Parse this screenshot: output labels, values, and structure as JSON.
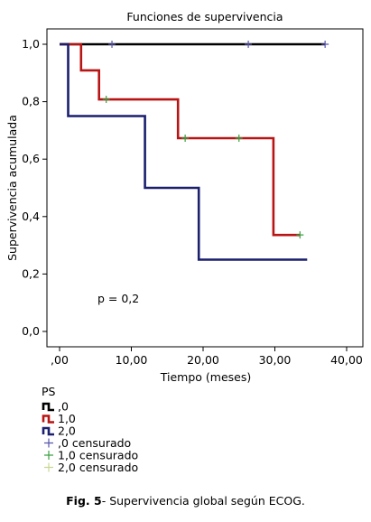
{
  "chart_data": {
    "type": "line",
    "subtype": "kaplan-meier step",
    "title": "Funciones de supervivencia",
    "xlabel": "Tiempo (meses)",
    "ylabel": "Supervivencia acumulada",
    "xlim": [
      0,
      40
    ],
    "ylim": [
      0,
      1
    ],
    "x_ticks": [
      ",00",
      "10,00",
      "20,00",
      "30,00",
      "40,00"
    ],
    "y_ticks": [
      "0,0",
      "0,2",
      "0,4",
      "0,6",
      "0,8",
      "1,0"
    ],
    "grid": false,
    "annotation": "p = 0,2",
    "legend_title": "PS",
    "legend_position": "bottom-left",
    "series": [
      {
        "name": ",0",
        "color": "#000000",
        "steps": [
          [
            0,
            1.0
          ],
          [
            37,
            1.0
          ]
        ],
        "censored": [
          [
            7.3,
            1.0
          ],
          [
            26.3,
            1.0
          ],
          [
            37,
            1.0
          ]
        ]
      },
      {
        "name": "1,0",
        "color": "#b81414",
        "steps": [
          [
            0,
            1.0
          ],
          [
            3,
            1.0
          ],
          [
            3,
            0.909
          ],
          [
            5.5,
            0.909
          ],
          [
            5.5,
            0.808
          ],
          [
            16.5,
            0.808
          ],
          [
            16.5,
            0.673
          ],
          [
            29.8,
            0.673
          ],
          [
            29.8,
            0.336
          ],
          [
            33.5,
            0.336
          ]
        ],
        "censored": [
          [
            6.5,
            0.808
          ],
          [
            17.5,
            0.673
          ],
          [
            25,
            0.673
          ],
          [
            33.5,
            0.336
          ]
        ]
      },
      {
        "name": "2,0",
        "color": "#1a1f6e",
        "steps": [
          [
            0,
            1.0
          ],
          [
            1.2,
            1.0
          ],
          [
            1.2,
            0.75
          ],
          [
            11.9,
            0.75
          ],
          [
            11.9,
            0.5
          ],
          [
            19.4,
            0.5
          ],
          [
            19.4,
            0.25
          ],
          [
            34.5,
            0.25
          ]
        ],
        "censored": []
      }
    ],
    "legend": [
      {
        "label": ",0",
        "kind": "line",
        "color": "#000000"
      },
      {
        "label": "1,0",
        "kind": "line",
        "color": "#b81414"
      },
      {
        "label": "2,0",
        "kind": "line",
        "color": "#1a1f6e"
      },
      {
        "label": ",0 censurado",
        "kind": "censor",
        "color": "#5555aa"
      },
      {
        "label": "1,0 censurado",
        "kind": "censor",
        "color": "#3aa040"
      },
      {
        "label": "2,0 censurado",
        "kind": "censor",
        "color": "#c8d890"
      }
    ]
  },
  "caption": {
    "label": "Fig. 5",
    "text": "- Supervivencia global según ECOG."
  }
}
